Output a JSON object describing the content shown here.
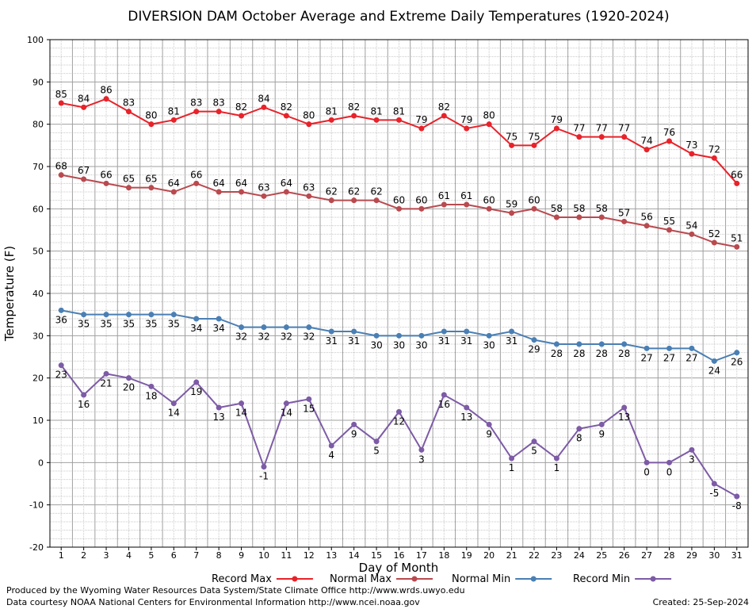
{
  "chart_data": {
    "type": "line",
    "title": "DIVERSION DAM October Average and Extreme Daily Temperatures (1920-2024)",
    "xlabel": "Day of Month",
    "ylabel": "Temperature (F)",
    "ylim": [
      -20,
      100
    ],
    "yticks": [
      -20,
      -10,
      0,
      10,
      20,
      30,
      40,
      50,
      60,
      70,
      80,
      90,
      100
    ],
    "grid": true,
    "legend_position": "bottom",
    "x": [
      1,
      2,
      3,
      4,
      5,
      6,
      7,
      8,
      9,
      10,
      11,
      12,
      13,
      14,
      15,
      16,
      17,
      18,
      19,
      20,
      21,
      22,
      23,
      24,
      25,
      26,
      27,
      28,
      29,
      30,
      31
    ],
    "series": [
      {
        "name": "Record Max",
        "color": "#e8222a",
        "values": [
          85,
          84,
          86,
          83,
          80,
          81,
          83,
          83,
          82,
          84,
          82,
          80,
          81,
          82,
          81,
          81,
          79,
          82,
          79,
          80,
          75,
          75,
          79,
          77,
          77,
          77,
          74,
          76,
          73,
          72,
          66
        ]
      },
      {
        "name": "Normal Max",
        "color": "#b94a4f",
        "values": [
          68,
          67,
          66,
          65,
          65,
          64,
          66,
          64,
          64,
          63,
          64,
          63,
          62,
          62,
          62,
          60,
          60,
          61,
          61,
          60,
          59,
          60,
          58,
          58,
          58,
          57,
          56,
          55,
          54,
          52,
          51
        ]
      },
      {
        "name": "Normal Min",
        "color": "#4a7fb4",
        "values": [
          36,
          35,
          35,
          35,
          35,
          35,
          34,
          34,
          32,
          32,
          32,
          32,
          31,
          31,
          30,
          30,
          30,
          31,
          31,
          30,
          31,
          29,
          28,
          28,
          28,
          28,
          27,
          27,
          27,
          24,
          26
        ]
      },
      {
        "name": "Record Min",
        "color": "#7d5ba6",
        "values": [
          23,
          16,
          21,
          20,
          18,
          14,
          19,
          13,
          14,
          -1,
          14,
          15,
          4,
          9,
          5,
          12,
          3,
          16,
          13,
          9,
          1,
          5,
          1,
          8,
          9,
          13,
          0,
          0,
          3,
          -5,
          -8
        ]
      }
    ]
  },
  "footer": {
    "produced_by": "Produced by the Wyoming Water Resources Data System/State Climate Office http://www.wrds.uwyo.edu",
    "courtesy": "Data courtesy NOAA National Centers for Environmental Information http://www.ncei.noaa.gov",
    "created": "Created: 25-Sep-2024"
  }
}
